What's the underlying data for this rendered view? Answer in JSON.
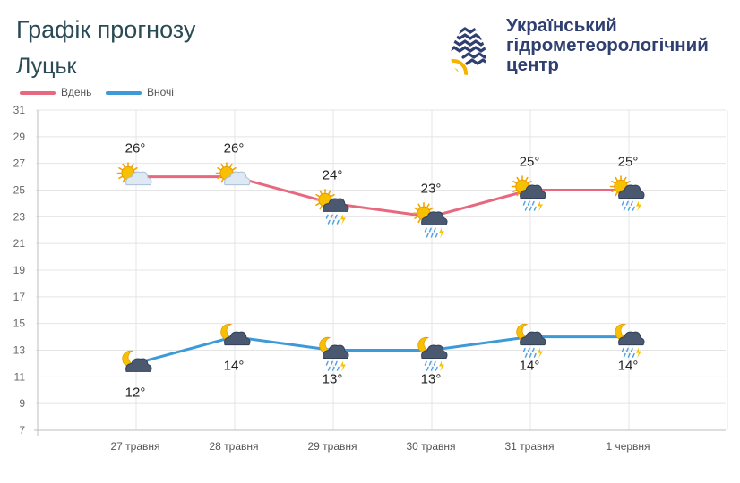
{
  "header": {
    "title": "Графік прогнозу",
    "city": "Луцьк"
  },
  "org": {
    "name_lines": [
      "Український",
      "гідрометеорологічний",
      "центр"
    ],
    "logo_icon": "water-drop-wave-sun-icon",
    "color": "#2f3f6f"
  },
  "chart_data": {
    "type": "line",
    "categories": [
      "27 травня",
      "28 травня",
      "29 травня",
      "30 травня",
      "31 травня",
      "1 червня"
    ],
    "series": [
      {
        "name": "Вдень",
        "color": "#e8697f",
        "values": [
          26,
          26,
          24,
          23,
          25,
          25
        ],
        "labels": [
          "26°",
          "26°",
          "24°",
          "23°",
          "25°",
          "25°"
        ],
        "icons": [
          "sun-cloud-icon",
          "sun-cloud-icon",
          "sun-cloud-rain-thunder-icon",
          "sun-cloud-rain-thunder-icon",
          "sun-cloud-rain-thunder-icon",
          "sun-cloud-rain-thunder-icon"
        ]
      },
      {
        "name": "Вночі",
        "color": "#3d9ad8",
        "values": [
          12,
          14,
          13,
          13,
          14,
          14
        ],
        "labels": [
          "12°",
          "14°",
          "13°",
          "13°",
          "14°",
          "14°"
        ],
        "icons": [
          "moon-cloud-icon",
          "moon-cloud-icon",
          "moon-cloud-rain-thunder-icon",
          "moon-cloud-rain-thunder-icon",
          "moon-cloud-rain-thunder-icon",
          "moon-cloud-rain-thunder-icon"
        ]
      }
    ],
    "ylim": [
      7,
      31
    ],
    "yticks": [
      7,
      9,
      11,
      13,
      15,
      17,
      19,
      21,
      23,
      25,
      27,
      29,
      31
    ],
    "grid": true,
    "legend": "top-left"
  }
}
